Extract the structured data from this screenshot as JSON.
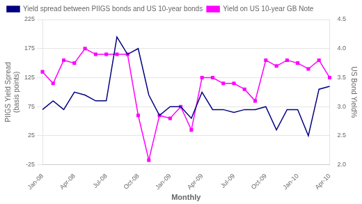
{
  "chart_data": {
    "type": "line",
    "categories": [
      "Jan-08",
      null,
      null,
      "Apr-08",
      null,
      null,
      "Jul-08",
      null,
      null,
      "Oct-08",
      null,
      null,
      "Jan-09",
      null,
      null,
      "Apr-09",
      null,
      null,
      "Jul-09",
      null,
      null,
      "Oct-09",
      null,
      null,
      "Jan-10",
      null,
      null,
      "Apr-10"
    ],
    "series": [
      {
        "name": "Yield spread between PIIGS bonds and US 10-year bonds",
        "color": "#000080",
        "values": [
          70,
          85,
          70,
          100,
          95,
          85,
          85,
          195,
          165,
          175,
          95,
          60,
          75,
          75,
          55,
          100,
          70,
          70,
          65,
          70,
          70,
          75,
          35,
          70,
          70,
          25,
          105,
          110
        ]
      },
      {
        "name": "Yield on US 10-year GB Note",
        "color": "#FF00FF",
        "axis": "y2",
        "marker": "square",
        "values": [
          3.6,
          3.4,
          3.8,
          3.75,
          4.0,
          3.9,
          3.9,
          3.9,
          3.9,
          2.85,
          2.08,
          2.85,
          2.8,
          3.0,
          2.6,
          3.5,
          3.5,
          3.4,
          3.4,
          3.3,
          3.1,
          3.8,
          3.7,
          3.8,
          3.75,
          3.65,
          3.8,
          3.5
        ]
      }
    ],
    "xlabel": "Monthly",
    "ylabel": "PIIGS Yield Spread\n(basis points)",
    "y2label": "US Bond Yield%",
    "ylim": [
      -25,
      225
    ],
    "yticks": [
      -25,
      25,
      75,
      125,
      175,
      225
    ],
    "y2lim": [
      2.0,
      4.5
    ],
    "y2ticks": [
      {
        "value": 2.0,
        "label": "2.0"
      },
      2.5,
      {
        "value": 3.0,
        "label": "3.0"
      },
      3.5,
      {
        "value": 4.0,
        "label": "4.0"
      },
      4.5
    ],
    "grid": true,
    "legend": "upper left"
  }
}
